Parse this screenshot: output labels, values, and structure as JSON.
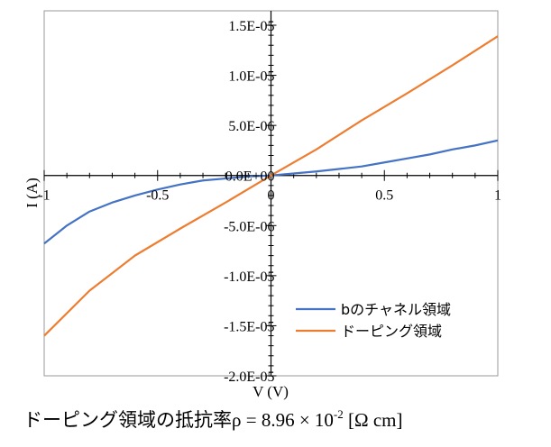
{
  "chart_data": {
    "type": "line",
    "xlabel": "V (V)",
    "ylabel": "I (A)",
    "xlim": [
      -1,
      1
    ],
    "ylim": [
      -2e-05,
      1.5e-05
    ],
    "x_ticks": [
      -1,
      -0.5,
      0,
      0.5,
      1
    ],
    "x_tick_labels": [
      "-1",
      "-0.5",
      "0",
      "0.5",
      "1"
    ],
    "y_ticks": [
      1.5e-05,
      1e-05,
      5e-06,
      0,
      -5e-06,
      -1e-05,
      -1.5e-05,
      -2e-05
    ],
    "y_tick_labels": [
      "1.5E-05",
      "1.0E-05",
      "5.0E-06",
      "0.0E+00",
      "-5.0E-06",
      "-1.0E-05",
      "-1.5E-05",
      "-2.0E-05"
    ],
    "grid": false,
    "legend_position": "bottom-right",
    "series": [
      {
        "name": "bのチャネル領域",
        "color": "#4472C4",
        "x": [
          -1,
          -0.9,
          -0.8,
          -0.7,
          -0.6,
          -0.5,
          -0.4,
          -0.3,
          -0.2,
          -0.1,
          0,
          0.1,
          0.2,
          0.3,
          0.4,
          0.5,
          0.6,
          0.7,
          0.8,
          0.9,
          1
        ],
        "y": [
          -6.8e-06,
          -5e-06,
          -3.6e-06,
          -2.7e-06,
          -2e-06,
          -1.4e-06,
          -9e-07,
          -5e-07,
          -3e-07,
          -1e-07,
          0,
          2e-07,
          4e-07,
          6.5e-07,
          9e-07,
          1.3e-06,
          1.7e-06,
          2.1e-06,
          2.6e-06,
          3e-06,
          3.5e-06
        ]
      },
      {
        "name": "ドーピング領域",
        "color": "#ED7D31",
        "x": [
          -1,
          -0.8,
          -0.6,
          -0.4,
          -0.2,
          0,
          0.2,
          0.4,
          0.6,
          0.8,
          1
        ],
        "y": [
          -1.6e-05,
          -1.15e-05,
          -8e-06,
          -5.3e-06,
          -2.7e-06,
          0,
          2.6e-06,
          5.5e-06,
          8.2e-06,
          1.1e-05,
          1.39e-05
        ]
      }
    ]
  },
  "caption": {
    "prefix": "ドーピング領域の抵抗率",
    "formula": "ρ = 8.96 × 10",
    "exponent": "-2",
    "unit": " [Ω cm]"
  }
}
